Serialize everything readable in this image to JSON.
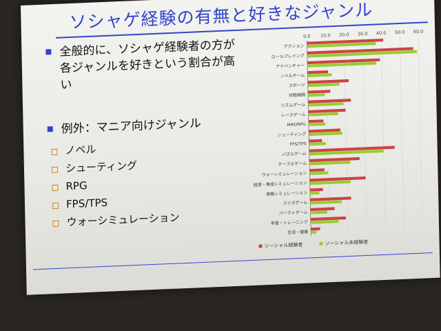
{
  "slide": {
    "title": "ソシャゲ経験の有無と好きなジャンル",
    "bullet1": "全般的に、ソシャゲ経験者の方が各ジャンルを好きという割合が高い",
    "bullet2": "例外：マニア向けジャンル",
    "subitems": [
      "ノベル",
      "シューティング",
      "RPG",
      "FPS/TPS",
      "ウォーシミュレーション"
    ],
    "accent_color": "#3344cc"
  },
  "chart_data": {
    "type": "bar",
    "orientation": "horizontal",
    "xlim": [
      0,
      60
    ],
    "xticks": [
      "0.0",
      "10.0",
      "20.0",
      "30.0",
      "40.0",
      "50.0",
      "60.0"
    ],
    "categories": [
      "アクション",
      "ロールプレイング",
      "アドベンチャー",
      "ノベルゲーム",
      "スポーツ",
      "対戦格闘",
      "リズムゲーム",
      "レースゲーム",
      "MMORPG",
      "シューティング",
      "FPS/TPS",
      "パズルゲーム",
      "テーブルゲーム",
      "ウォーシミュレーション",
      "経営・育成シミュレーション",
      "実機シミュレーション",
      "クイズゲーム",
      "パーティゲーム",
      "学習・トレーニング",
      "生活・健康"
    ],
    "series": [
      {
        "name": "ソーシャル経験者",
        "color": "#cc4444",
        "values": [
          41,
          57,
          39,
          11,
          22,
          12,
          23,
          20,
          8,
          17,
          7,
          46,
          27,
          8,
          30,
          7,
          22,
          13,
          19,
          5
        ]
      },
      {
        "name": "ソーシャル未経験者",
        "color": "#99cc33",
        "values": [
          37,
          59,
          37,
          13,
          17,
          9,
          19,
          16,
          9,
          18,
          9,
          40,
          22,
          10,
          22,
          5,
          17,
          9,
          15,
          3
        ]
      }
    ],
    "legend": "bottom"
  }
}
